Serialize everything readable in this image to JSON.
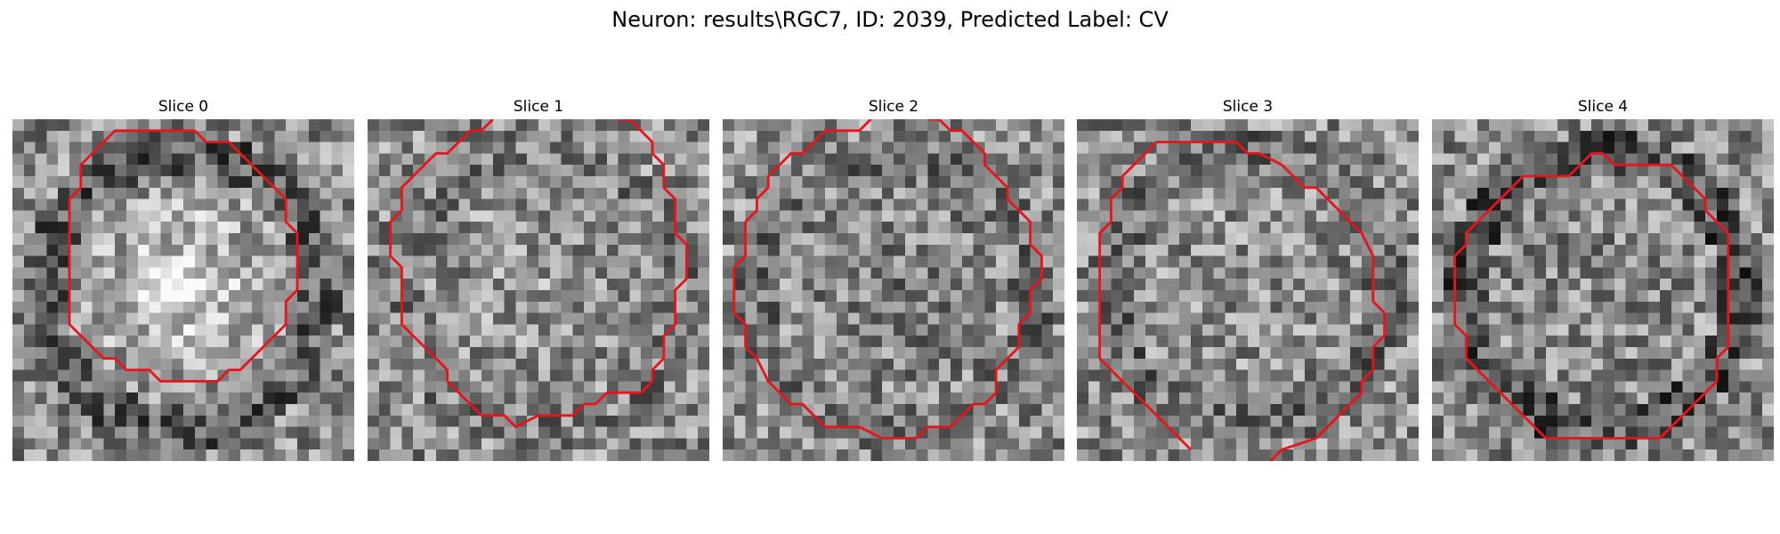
{
  "figure": {
    "title": "Neuron: results\\RGC7, ID: 2039, Predicted Label: CV"
  },
  "panels": [
    {
      "title": "Slice 0",
      "seed": 11,
      "center_bright": 0.28,
      "ring_dark": 0.18,
      "contour": [
        [
          13.0,
          1.0
        ],
        [
          16.0,
          1.0
        ],
        [
          17.0,
          2.0
        ],
        [
          19.0,
          2.0
        ],
        [
          21.0,
          4.0
        ],
        [
          24.0,
          7.0
        ],
        [
          24.0,
          9.0
        ],
        [
          25.0,
          10.0
        ],
        [
          25.0,
          15.0
        ],
        [
          24.0,
          16.0
        ],
        [
          24.0,
          18.0
        ],
        [
          23.0,
          19.0
        ],
        [
          23.0,
          19.0
        ],
        [
          20.0,
          22.0
        ],
        [
          19.0,
          22.0
        ],
        [
          18.0,
          23.0
        ],
        [
          16.0,
          23.0
        ],
        [
          13.0,
          23.0
        ],
        [
          12.0,
          22.0
        ],
        [
          10.0,
          22.0
        ],
        [
          9.0,
          21.0
        ],
        [
          8.0,
          21.0
        ],
        [
          5.0,
          18.0
        ],
        [
          5.0,
          17.0
        ],
        [
          5.0,
          10.0
        ],
        [
          5.0,
          7.0
        ],
        [
          6.0,
          6.0
        ],
        [
          6.0,
          4.0
        ],
        [
          9.0,
          1.0
        ],
        [
          10.0,
          1.0
        ],
        [
          13.0,
          1.0
        ]
      ]
    },
    {
      "title": "Slice 1",
      "seed": 23,
      "center_bright": 0.05,
      "ring_dark": 0.05,
      "contour": [
        [
          11.0,
          0.0
        ],
        [
          10.0,
          1.0
        ],
        [
          9.0,
          1.0
        ],
        [
          7.0,
          3.0
        ],
        [
          6.0,
          3.0
        ],
        [
          3.0,
          6.0
        ],
        [
          3.0,
          8.0
        ],
        [
          2.0,
          9.0
        ],
        [
          2.0,
          12.0
        ],
        [
          3.0,
          13.0
        ],
        [
          3.0,
          18.0
        ],
        [
          4.0,
          19.0
        ],
        [
          6.0,
          21.0
        ],
        [
          7.0,
          22.0
        ],
        [
          7.0,
          23.0
        ],
        [
          10.0,
          26.0
        ],
        [
          12.0,
          26.0
        ],
        [
          13.0,
          27.0
        ],
        [
          15.0,
          26.0
        ],
        [
          18.0,
          26.0
        ],
        [
          19.0,
          25.0
        ],
        [
          20.0,
          25.0
        ],
        [
          21.0,
          24.0
        ],
        [
          24.0,
          24.0
        ],
        [
          25.0,
          23.0
        ],
        [
          25.0,
          22.0
        ],
        [
          26.0,
          21.0
        ],
        [
          26.0,
          19.0
        ],
        [
          27.0,
          18.0
        ],
        [
          27.0,
          15.0
        ],
        [
          28.0,
          14.0
        ],
        [
          28.0,
          11.0
        ],
        [
          27.0,
          10.0
        ],
        [
          27.0,
          7.0
        ],
        [
          26.0,
          6.0
        ],
        [
          26.0,
          4.0
        ],
        [
          25.0,
          3.0
        ],
        [
          25.0,
          2.0
        ],
        [
          23.0,
          0.0
        ],
        [
          22.0,
          0.0
        ]
      ]
    },
    {
      "title": "Slice 2",
      "seed": 37,
      "center_bright": -0.05,
      "ring_dark": 0.08,
      "contour": [
        [
          13.0,
          0.0
        ],
        [
          12.0,
          1.0
        ],
        [
          9.0,
          1.0
        ],
        [
          7.0,
          3.0
        ],
        [
          6.0,
          3.0
        ],
        [
          4.0,
          5.0
        ],
        [
          4.0,
          6.0
        ],
        [
          3.0,
          7.0
        ],
        [
          3.0,
          8.0
        ],
        [
          2.0,
          9.0
        ],
        [
          2.0,
          12.0
        ],
        [
          1.0,
          13.0
        ],
        [
          1.0,
          17.0
        ],
        [
          2.0,
          18.0
        ],
        [
          2.0,
          20.0
        ],
        [
          3.0,
          21.0
        ],
        [
          4.0,
          23.0
        ],
        [
          6.0,
          25.0
        ],
        [
          7.0,
          25.0
        ],
        [
          9.0,
          27.0
        ],
        [
          12.0,
          27.0
        ],
        [
          14.0,
          28.0
        ],
        [
          17.0,
          28.0
        ],
        [
          18.0,
          27.0
        ],
        [
          20.0,
          27.0
        ],
        [
          22.0,
          25.0
        ],
        [
          23.0,
          25.0
        ],
        [
          24.0,
          24.0
        ],
        [
          24.0,
          22.0
        ],
        [
          26.0,
          20.0
        ],
        [
          26.0,
          18.0
        ],
        [
          27.0,
          17.0
        ],
        [
          27.0,
          15.0
        ],
        [
          28.0,
          14.0
        ],
        [
          28.0,
          12.0
        ],
        [
          27.0,
          11.0
        ],
        [
          27.0,
          9.0
        ],
        [
          26.0,
          8.0
        ],
        [
          25.0,
          7.0
        ],
        [
          25.0,
          6.0
        ],
        [
          23.0,
          4.0
        ],
        [
          23.0,
          3.0
        ],
        [
          21.0,
          1.0
        ],
        [
          20.0,
          1.0
        ],
        [
          19.0,
          0.0
        ],
        [
          18.0,
          0.0
        ]
      ]
    },
    {
      "title": "Slice 3",
      "seed": 53,
      "center_bright": 0.02,
      "ring_dark": 0.1,
      "contour": [
        [
          10.0,
          29.0
        ],
        [
          9.0,
          28.0
        ],
        [
          8.0,
          27.0
        ],
        [
          7.0,
          26.0
        ],
        [
          5.0,
          24.0
        ],
        [
          4.0,
          23.0
        ],
        [
          3.0,
          22.0
        ],
        [
          2.0,
          21.0
        ],
        [
          2.0,
          18.0
        ],
        [
          2.0,
          13.0
        ],
        [
          2.0,
          10.0
        ],
        [
          3.0,
          9.0
        ],
        [
          3.0,
          7.0
        ],
        [
          4.0,
          6.0
        ],
        [
          4.0,
          5.0
        ],
        [
          7.0,
          2.0
        ],
        [
          8.0,
          2.0
        ],
        [
          10.0,
          2.0
        ],
        [
          11.0,
          2.0
        ],
        [
          14.0,
          2.0
        ],
        [
          15.0,
          3.0
        ],
        [
          16.0,
          3.0
        ],
        [
          18.0,
          4.0
        ],
        [
          20.0,
          6.0
        ],
        [
          21.0,
          6.0
        ],
        [
          23.0,
          8.0
        ],
        [
          24.0,
          9.0
        ],
        [
          25.0,
          10.0
        ],
        [
          26.0,
          12.0
        ],
        [
          26.0,
          16.0
        ],
        [
          27.0,
          17.0
        ],
        [
          27.0,
          19.0
        ],
        [
          26.0,
          20.0
        ],
        [
          26.0,
          22.0
        ],
        [
          25.0,
          23.0
        ],
        [
          25.0,
          24.0
        ],
        [
          23.0,
          26.0
        ],
        [
          22.0,
          27.0
        ],
        [
          21.0,
          28.0
        ],
        [
          18.0,
          29.0
        ],
        [
          17.0,
          30.0
        ]
      ]
    },
    {
      "title": "Slice 4",
      "seed": 71,
      "center_bright": -0.02,
      "ring_dark": 0.22,
      "contour": [
        [
          13.0,
          4.0
        ],
        [
          14.0,
          3.0
        ],
        [
          15.0,
          3.0
        ],
        [
          16.0,
          4.0
        ],
        [
          18.0,
          4.0
        ],
        [
          21.0,
          4.0
        ],
        [
          22.0,
          5.0
        ],
        [
          23.0,
          6.0
        ],
        [
          24.0,
          7.0
        ],
        [
          24.0,
          8.0
        ],
        [
          25.0,
          9.0
        ],
        [
          26.0,
          10.0
        ],
        [
          26.0,
          14.0
        ],
        [
          26.0,
          20.0
        ],
        [
          25.0,
          21.0
        ],
        [
          25.0,
          23.0
        ],
        [
          23.0,
          25.0
        ],
        [
          21.0,
          27.0
        ],
        [
          20.0,
          28.0
        ],
        [
          16.0,
          28.0
        ],
        [
          13.0,
          28.0
        ],
        [
          10.0,
          28.0
        ],
        [
          9.0,
          27.0
        ],
        [
          8.0,
          26.0
        ],
        [
          7.0,
          25.0
        ],
        [
          5.0,
          23.0
        ],
        [
          4.0,
          22.0
        ],
        [
          3.0,
          21.0
        ],
        [
          3.0,
          19.0
        ],
        [
          2.0,
          18.0
        ],
        [
          2.0,
          12.0
        ],
        [
          3.0,
          11.0
        ],
        [
          3.0,
          10.0
        ],
        [
          4.0,
          9.0
        ],
        [
          6.0,
          7.0
        ],
        [
          7.0,
          6.0
        ],
        [
          8.0,
          5.0
        ],
        [
          9.0,
          5.0
        ],
        [
          10.0,
          5.0
        ],
        [
          12.0,
          5.0
        ],
        [
          13.0,
          4.0
        ]
      ]
    }
  ]
}
